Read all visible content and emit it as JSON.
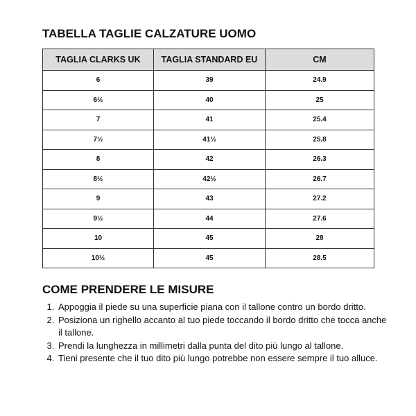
{
  "title": "TABELLA TAGLIE CALZATURE UOMO",
  "table": {
    "headers": [
      "TAGLIA CLARKS UK",
      "TAGLIA STANDARD EU",
      "CM"
    ],
    "rows": [
      [
        "6",
        "39",
        "24.9"
      ],
      [
        "6½",
        "40",
        "25"
      ],
      [
        "7",
        "41",
        "25.4"
      ],
      [
        "7½",
        "41½",
        "25.8"
      ],
      [
        "8",
        "42",
        "26.3"
      ],
      [
        "8½",
        "42½",
        "26.7"
      ],
      [
        "9",
        "43",
        "27.2"
      ],
      [
        "9½",
        "44",
        "27.6"
      ],
      [
        "10",
        "45",
        "28"
      ],
      [
        "10½",
        "45",
        "28.5"
      ]
    ]
  },
  "instructions": {
    "title": "COME PRENDERE LE MISURE",
    "steps": [
      "Appoggia il piede su una superficie piana con il tallone contro un bordo dritto.",
      "Posiziona un righello accanto al tuo piede toccando il bordo dritto che tocca anche il tallone.",
      "Prendi la lunghezza in millimetri dalla punta del dito più lungo al tallone.",
      "Tieni presente che il tuo dito più lungo potrebbe non essere sempre il tuo alluce."
    ]
  },
  "colors": {
    "header_bg": "#dcdcdc",
    "border": "#333333"
  }
}
